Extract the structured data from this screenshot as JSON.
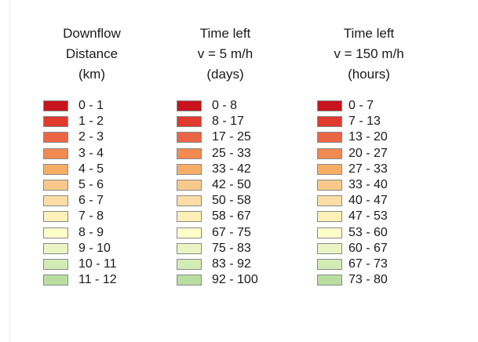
{
  "colors": [
    "#c8141c",
    "#e0392d",
    "#ea6546",
    "#f08a51",
    "#f6ae67",
    "#f9c98b",
    "#fcdda5",
    "#fef0b7",
    "#ffffca",
    "#ebf5c3",
    "#d3ebb5",
    "#b8dea1"
  ],
  "columns": [
    {
      "title": [
        "Downflow",
        "Distance",
        "(km)"
      ],
      "labels": [
        "0 - 1",
        "1 - 2",
        "2 - 3",
        "3 - 4",
        "4 - 5",
        "5 - 6",
        "6 - 7",
        "7 - 8",
        "8 - 9",
        "9 - 10",
        "10 - 11",
        "11 - 12"
      ]
    },
    {
      "title": [
        "Time left",
        "v = 5 m/h",
        "(days)"
      ],
      "labels": [
        "0 - 8",
        "8 - 17",
        "17 - 25",
        "25 - 33",
        "33 - 42",
        "42 - 50",
        "50 - 58",
        "58 - 67",
        "67 - 75",
        "75 - 83",
        "83 - 92",
        "92 - 100"
      ]
    },
    {
      "title": [
        "Time left",
        "v = 150 m/h",
        "(hours)"
      ],
      "labels": [
        "0 - 7",
        "7 - 13",
        "13 - 20",
        "20 - 27",
        "27 - 33",
        "33 - 40",
        "40 - 47",
        "47 - 53",
        "53 - 60",
        "60 - 67",
        "67 - 73",
        "73 - 80"
      ]
    }
  ]
}
